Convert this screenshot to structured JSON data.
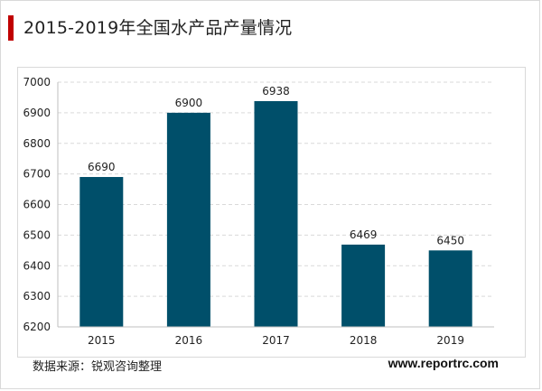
{
  "header": {
    "title": "2015-2019年全国水产品产量情况"
  },
  "footer": {
    "source": "数据来源：锐观咨询整理",
    "website": "www.reportrc.com"
  },
  "colors": {
    "bar": "#004f6a",
    "accent": "#c00000",
    "grid": "#d9d9d9"
  },
  "chart_data": {
    "type": "bar",
    "title": "",
    "xlabel": "",
    "ylabel": "",
    "categories": [
      "2015",
      "2016",
      "2017",
      "2018",
      "2019"
    ],
    "values": [
      6690,
      6900,
      6938,
      6469,
      6450
    ],
    "data_labels": [
      "6690",
      "6900",
      "6938",
      "6469",
      "6450"
    ],
    "ylim": [
      6200,
      7000
    ],
    "yticks": [
      6200,
      6300,
      6400,
      6500,
      6600,
      6700,
      6800,
      6900,
      7000
    ],
    "grid": true,
    "grid_style": "dashed",
    "legend": "none"
  }
}
